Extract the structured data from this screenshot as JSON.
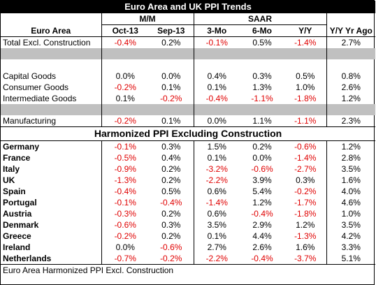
{
  "title": "Euro Area and UK PPI Trends",
  "groups": {
    "mm": "M/M",
    "saar": "SAAR"
  },
  "headers": [
    "Euro Area",
    "Oct-13",
    "Sep-13",
    "3-Mo",
    "6-Mo",
    "Y/Y",
    "Y/Y Yr Ago"
  ],
  "euro_rows": [
    {
      "label": "Total Excl. Construction",
      "values": [
        "-0.4%",
        "0.2%",
        "-0.1%",
        "0.5%",
        "-1.4%",
        "2.7%"
      ]
    },
    {
      "label": "Capital Goods",
      "values": [
        "0.0%",
        "0.0%",
        "0.4%",
        "0.3%",
        "0.5%",
        "0.8%"
      ]
    },
    {
      "label": "Consumer Goods",
      "values": [
        "-0.2%",
        "0.1%",
        "0.1%",
        "1.3%",
        "1.0%",
        "2.6%"
      ]
    },
    {
      "label": "Intermediate Goods",
      "values": [
        "0.1%",
        "-0.2%",
        "-0.4%",
        "-1.1%",
        "-1.8%",
        "1.2%"
      ]
    },
    {
      "label": "Manufacturing",
      "values": [
        "-0.2%",
        "0.1%",
        "0.0%",
        "1.1%",
        "-1.1%",
        "2.3%"
      ]
    }
  ],
  "section_title": "Harmonized PPI Excluding Construction",
  "countries": [
    {
      "label": "Germany",
      "values": [
        "-0.1%",
        "0.3%",
        "1.5%",
        "0.2%",
        "-0.6%",
        "1.2%"
      ]
    },
    {
      "label": "France",
      "values": [
        "-0.5%",
        "0.4%",
        "0.1%",
        "0.0%",
        "-1.4%",
        "2.8%"
      ]
    },
    {
      "label": "Italy",
      "values": [
        "-0.9%",
        "0.2%",
        "-3.2%",
        "-0.6%",
        "-2.7%",
        "3.5%"
      ]
    },
    {
      "label": "UK",
      "values": [
        "-1.3%",
        "0.2%",
        "-2.2%",
        "3.9%",
        "0.3%",
        "1.6%"
      ]
    },
    {
      "label": "Spain",
      "values": [
        "-0.4%",
        "0.5%",
        "0.6%",
        "5.4%",
        "-0.2%",
        "4.0%"
      ]
    },
    {
      "label": "Portugal",
      "values": [
        "-0.1%",
        "-0.4%",
        "-1.4%",
        "1.2%",
        "-1.7%",
        "4.6%"
      ]
    },
    {
      "label": "Austria",
      "values": [
        "-0.3%",
        "0.2%",
        "0.6%",
        "-0.4%",
        "-1.8%",
        "1.0%"
      ]
    },
    {
      "label": "Denmark",
      "values": [
        "-0.6%",
        "0.3%",
        "3.5%",
        "2.9%",
        "1.2%",
        "3.5%"
      ]
    },
    {
      "label": "Greece",
      "values": [
        "-0.2%",
        "0.2%",
        "0.1%",
        "4.4%",
        "-1.3%",
        "4.2%"
      ]
    },
    {
      "label": "Ireland",
      "values": [
        "0.0%",
        "-0.6%",
        "2.7%",
        "2.6%",
        "1.6%",
        "3.3%"
      ]
    },
    {
      "label": "Netherlands",
      "values": [
        "-0.7%",
        "-0.2%",
        "-2.2%",
        "-0.4%",
        "-3.7%",
        "5.1%"
      ]
    }
  ],
  "footer": "Euro Area Harmonized PPI Excl. Construction",
  "colors": {
    "negative": "#e00000",
    "separator": "#c0c0c0",
    "title_bg": "#000000"
  }
}
